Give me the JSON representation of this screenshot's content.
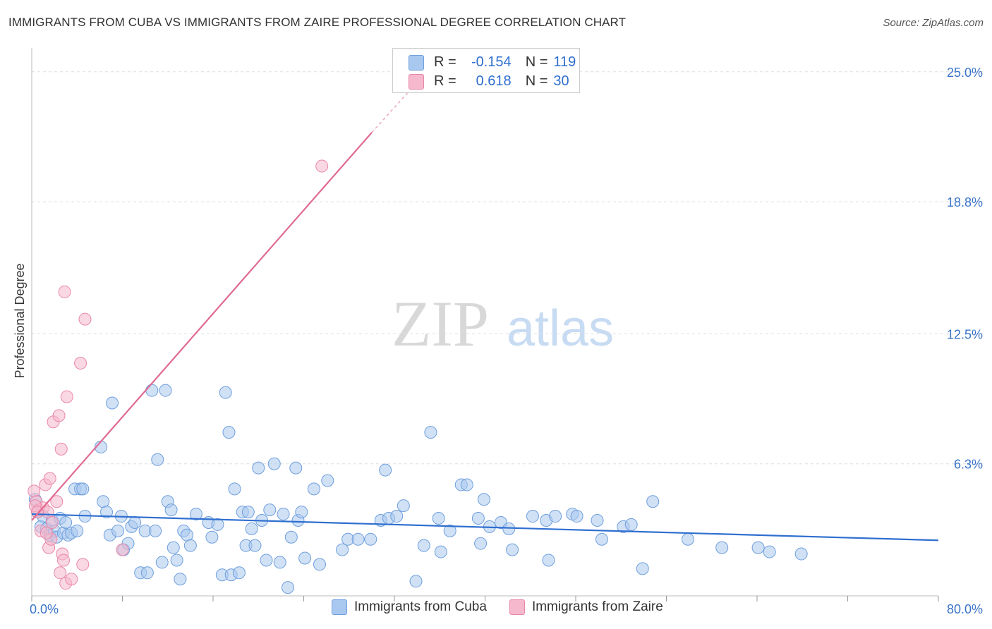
{
  "title": "IMMIGRANTS FROM CUBA VS IMMIGRANTS FROM ZAIRE PROFESSIONAL DEGREE CORRELATION CHART",
  "source": "Source: ZipAtlas.com",
  "watermark": {
    "zip": "ZIP",
    "atlas": "atlas"
  },
  "stats": {
    "r_label": "R =",
    "n_label": "N =",
    "cuba": {
      "r": "-0.154",
      "n": "119"
    },
    "zaire": {
      "r": "0.618",
      "n": "30"
    }
  },
  "legend": {
    "cuba": "Immigrants from Cuba",
    "zaire": "Immigrants from Zaire"
  },
  "colors": {
    "cuba_fill": "#a9c8ef",
    "cuba_stroke": "#6f9fdc",
    "cuba_line": "#2f6fd0",
    "zaire_fill": "#f6b8cc",
    "zaire_stroke": "#e887a8",
    "zaire_line": "#e06a93",
    "tick_label": "#3a74c9",
    "grid": "#dddddd"
  },
  "chart_data": {
    "type": "scatter",
    "title": "IMMIGRANTS FROM CUBA VS IMMIGRANTS FROM ZAIRE PROFESSIONAL DEGREE CORRELATION CHART",
    "xlabel": "",
    "ylabel": "Professional Degree",
    "xlim": [
      0,
      80
    ],
    "ylim": [
      0,
      25.8
    ],
    "x_tick_labels": [
      "0.0%",
      "80.0%"
    ],
    "y_ticks": [
      6.3,
      12.5,
      18.8,
      25.0
    ],
    "y_tick_labels": [
      "6.3%",
      "12.5%",
      "18.8%",
      "25.0%"
    ],
    "grid": true,
    "series": [
      {
        "name": "Immigrants from Cuba",
        "color": "#6f9fdc",
        "points": [
          [
            0.3,
            4.6
          ],
          [
            0.5,
            4.0
          ],
          [
            0.8,
            3.3
          ],
          [
            1.0,
            3.8
          ],
          [
            1.3,
            3.2
          ],
          [
            1.6,
            2.9
          ],
          [
            1.8,
            3.6
          ],
          [
            2.0,
            3.1
          ],
          [
            2.2,
            2.8
          ],
          [
            2.5,
            3.7
          ],
          [
            2.8,
            3.0
          ],
          [
            3.0,
            3.5
          ],
          [
            3.2,
            2.9
          ],
          [
            3.5,
            3.0
          ],
          [
            3.8,
            5.1
          ],
          [
            4.0,
            3.1
          ],
          [
            4.3,
            5.1
          ],
          [
            4.5,
            5.1
          ],
          [
            4.7,
            3.8
          ],
          [
            6.1,
            7.1
          ],
          [
            6.3,
            4.5
          ],
          [
            6.6,
            4.0
          ],
          [
            6.9,
            2.9
          ],
          [
            7.1,
            9.2
          ],
          [
            7.6,
            3.1
          ],
          [
            7.9,
            3.8
          ],
          [
            8.1,
            2.2
          ],
          [
            8.5,
            2.5
          ],
          [
            8.8,
            3.3
          ],
          [
            9.1,
            3.5
          ],
          [
            9.6,
            1.1
          ],
          [
            10.0,
            3.1
          ],
          [
            10.2,
            1.1
          ],
          [
            10.6,
            9.8
          ],
          [
            10.9,
            3.1
          ],
          [
            11.1,
            6.5
          ],
          [
            11.5,
            1.6
          ],
          [
            11.8,
            9.8
          ],
          [
            12.0,
            4.5
          ],
          [
            12.3,
            4.1
          ],
          [
            12.5,
            2.3
          ],
          [
            12.8,
            1.7
          ],
          [
            13.1,
            0.8
          ],
          [
            13.4,
            3.1
          ],
          [
            13.7,
            2.9
          ],
          [
            14.0,
            2.4
          ],
          [
            14.5,
            3.9
          ],
          [
            15.6,
            3.5
          ],
          [
            15.9,
            2.8
          ],
          [
            16.4,
            3.4
          ],
          [
            16.8,
            1.0
          ],
          [
            17.1,
            9.7
          ],
          [
            17.4,
            7.8
          ],
          [
            17.6,
            1.0
          ],
          [
            17.9,
            5.1
          ],
          [
            18.3,
            1.1
          ],
          [
            18.6,
            4.0
          ],
          [
            18.9,
            2.4
          ],
          [
            19.1,
            4.0
          ],
          [
            19.4,
            3.2
          ],
          [
            19.7,
            2.4
          ],
          [
            20.0,
            6.1
          ],
          [
            20.3,
            3.6
          ],
          [
            20.7,
            1.7
          ],
          [
            21.0,
            4.1
          ],
          [
            21.4,
            6.3
          ],
          [
            21.9,
            1.6
          ],
          [
            22.2,
            3.9
          ],
          [
            22.6,
            0.4
          ],
          [
            22.9,
            2.8
          ],
          [
            23.3,
            6.1
          ],
          [
            23.5,
            3.6
          ],
          [
            23.8,
            4.0
          ],
          [
            24.1,
            1.8
          ],
          [
            24.9,
            5.1
          ],
          [
            25.4,
            1.5
          ],
          [
            26.1,
            5.5
          ],
          [
            27.4,
            2.2
          ],
          [
            27.9,
            2.7
          ],
          [
            28.8,
            2.7
          ],
          [
            29.9,
            2.7
          ],
          [
            30.8,
            3.6
          ],
          [
            31.2,
            6.0
          ],
          [
            31.5,
            3.7
          ],
          [
            32.2,
            3.8
          ],
          [
            32.8,
            4.3
          ],
          [
            33.9,
            0.7
          ],
          [
            34.6,
            2.4
          ],
          [
            35.2,
            7.8
          ],
          [
            35.9,
            3.7
          ],
          [
            36.1,
            2.1
          ],
          [
            36.9,
            3.1
          ],
          [
            37.9,
            5.3
          ],
          [
            38.4,
            5.3
          ],
          [
            39.4,
            3.7
          ],
          [
            39.6,
            2.5
          ],
          [
            39.9,
            4.6
          ],
          [
            40.4,
            3.3
          ],
          [
            41.4,
            3.5
          ],
          [
            42.1,
            3.2
          ],
          [
            42.4,
            2.2
          ],
          [
            44.2,
            3.8
          ],
          [
            45.4,
            3.6
          ],
          [
            45.6,
            1.7
          ],
          [
            46.2,
            3.8
          ],
          [
            47.7,
            3.9
          ],
          [
            48.1,
            3.8
          ],
          [
            49.9,
            3.6
          ],
          [
            50.3,
            2.7
          ],
          [
            52.2,
            3.3
          ],
          [
            52.9,
            3.4
          ],
          [
            53.9,
            1.3
          ],
          [
            54.8,
            4.5
          ],
          [
            57.9,
            2.7
          ],
          [
            60.9,
            2.3
          ],
          [
            64.1,
            2.3
          ],
          [
            65.1,
            2.1
          ],
          [
            67.9,
            2.0
          ]
        ],
        "trend": {
          "x": [
            0,
            80
          ],
          "y": [
            3.9,
            2.65
          ]
        }
      },
      {
        "name": "Immigrants from Zaire",
        "color": "#e887a8",
        "points": [
          [
            0.2,
            5.0
          ],
          [
            0.4,
            4.5
          ],
          [
            0.6,
            4.1
          ],
          [
            0.8,
            3.1
          ],
          [
            1.0,
            4.2
          ],
          [
            1.2,
            5.3
          ],
          [
            1.4,
            4.0
          ],
          [
            1.5,
            2.3
          ],
          [
            1.6,
            5.6
          ],
          [
            1.7,
            2.7
          ],
          [
            1.8,
            3.5
          ],
          [
            1.9,
            8.3
          ],
          [
            2.2,
            4.5
          ],
          [
            2.4,
            8.6
          ],
          [
            2.5,
            1.1
          ],
          [
            2.6,
            7.0
          ],
          [
            2.7,
            2.0
          ],
          [
            2.8,
            1.7
          ],
          [
            2.9,
            14.5
          ],
          [
            3.0,
            0.6
          ],
          [
            3.1,
            9.5
          ],
          [
            3.5,
            0.8
          ],
          [
            4.3,
            11.1
          ],
          [
            4.5,
            1.5
          ],
          [
            4.7,
            13.2
          ],
          [
            8.0,
            2.2
          ],
          [
            25.6,
            20.5
          ],
          [
            0.3,
            4.3
          ],
          [
            0.5,
            4.0
          ],
          [
            1.3,
            3.0
          ]
        ],
        "trend": {
          "x": [
            0,
            30.0
          ],
          "y": [
            3.6,
            22.1
          ]
        },
        "trend_dashed": {
          "x": [
            30.0,
            33.5
          ],
          "y": [
            22.1,
            24.2
          ]
        }
      }
    ]
  }
}
